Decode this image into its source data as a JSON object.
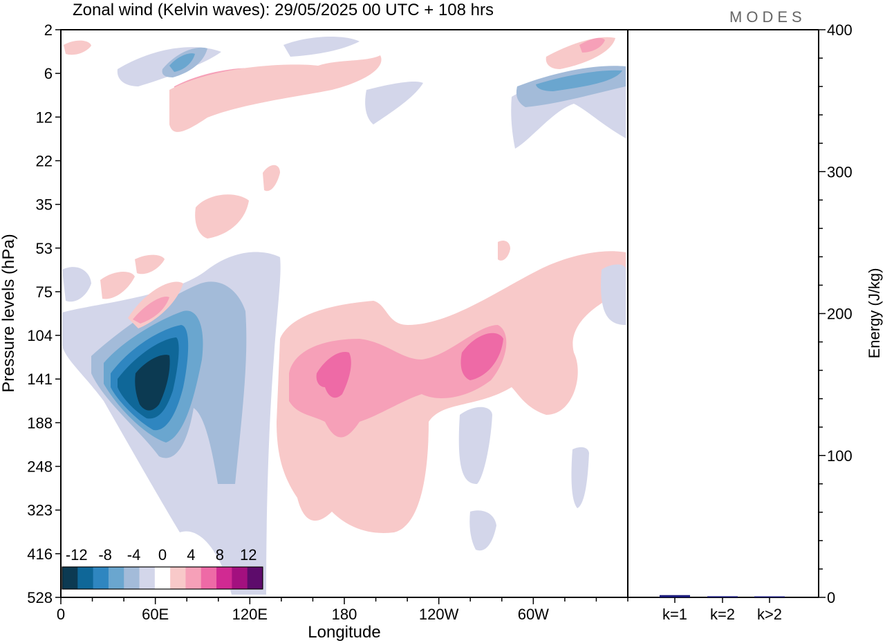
{
  "header": {
    "title": "Zonal wind (Kelvin waves):  29/05/2025  00 UTC  + 108 hrs",
    "logo": "MODES"
  },
  "colors": {
    "scale": [
      "#0c3a52",
      "#0f6798",
      "#2f86c0",
      "#6aa6cf",
      "#a3bbd9",
      "#d3d6ea",
      "#ffffff",
      "#f8c9c9",
      "#f6a0b8",
      "#ee6aa6",
      "#d12a92",
      "#a3107f",
      "#5d0c6b"
    ],
    "bar": "#1c1c7a"
  },
  "chart_data": [
    {
      "type": "heatmap",
      "title": "Zonal wind (Kelvin waves):  29/05/2025  00 UTC  + 108 hrs",
      "xlabel": "Longitude",
      "ylabel": "Pressure levels (hPa)",
      "x_ticks": [
        "0",
        "60E",
        "120E",
        "180",
        "120W",
        "60W"
      ],
      "x_tick_values": [
        0,
        60,
        120,
        180,
        240,
        300
      ],
      "xlim": [
        0,
        360
      ],
      "y_ticks": [
        "2",
        "6",
        "12",
        "22",
        "35",
        "53",
        "75",
        "104",
        "141",
        "188",
        "248",
        "323",
        "416",
        "528"
      ],
      "y_scale": "log (inverted)",
      "colorbar_labels": [
        "-12",
        "-8",
        "-4",
        "0",
        "4",
        "8",
        "12"
      ],
      "colorbar_values": [
        -12,
        -8,
        -4,
        0,
        4,
        8,
        12
      ],
      "features": [
        {
          "lon": 52,
          "p": 141,
          "value": -13
        },
        {
          "lon": 60,
          "p": 130,
          "value": -10
        },
        {
          "lon": 100,
          "p": 130,
          "value": -4
        },
        {
          "lon": 170,
          "p": 141,
          "value": 6
        },
        {
          "lon": 175,
          "p": 160,
          "value": 4
        },
        {
          "lon": 265,
          "p": 141,
          "value": 4
        },
        {
          "lon": 85,
          "p": 8,
          "value": 8
        },
        {
          "lon": 75,
          "p": 5,
          "value": -5
        },
        {
          "lon": 330,
          "p": 7,
          "value": -5
        },
        {
          "lon": 335,
          "p": 4,
          "value": 5
        }
      ]
    },
    {
      "type": "bar",
      "categories": [
        "k=1",
        "k=2",
        "k>2"
      ],
      "values": [
        1.6,
        0.8,
        0.6
      ],
      "ylabel": "Energy (J/kg)",
      "ylim": [
        0,
        400
      ],
      "y_ticks": [
        "0",
        "100",
        "200",
        "300",
        "400"
      ],
      "y_tick_values": [
        0,
        100,
        200,
        300,
        400
      ]
    }
  ]
}
